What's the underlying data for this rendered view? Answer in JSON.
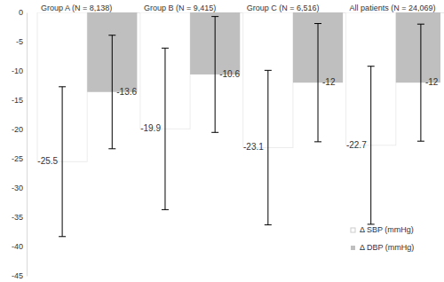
{
  "chart_data": {
    "type": "bar",
    "categories": [
      "Group A (N = 8,138)",
      "Group B (N = 9,415)",
      "Group C (N = 6,516)",
      "All patients (N = 24,069)"
    ],
    "series": [
      {
        "name": "Δ SBP (mmHg)",
        "color": "#ffffff",
        "values": [
          -25.5,
          -19.9,
          -23.1,
          -22.7
        ],
        "errors": [
          12.8,
          13.8,
          13.2,
          13.5
        ]
      },
      {
        "name": "Δ DBP (mmHg)",
        "color": "#bfbfbf",
        "values": [
          -13.6,
          -10.6,
          -12,
          -12
        ],
        "errors": [
          9.7,
          9.9,
          10.1,
          10
        ]
      }
    ],
    "ylim": [
      -45,
      0
    ],
    "yticks": [
      0,
      -5,
      -10,
      -15,
      -20,
      -25,
      -30,
      -35,
      -40,
      -45
    ],
    "data_labels": true,
    "legend": "lower right",
    "grid": false
  }
}
